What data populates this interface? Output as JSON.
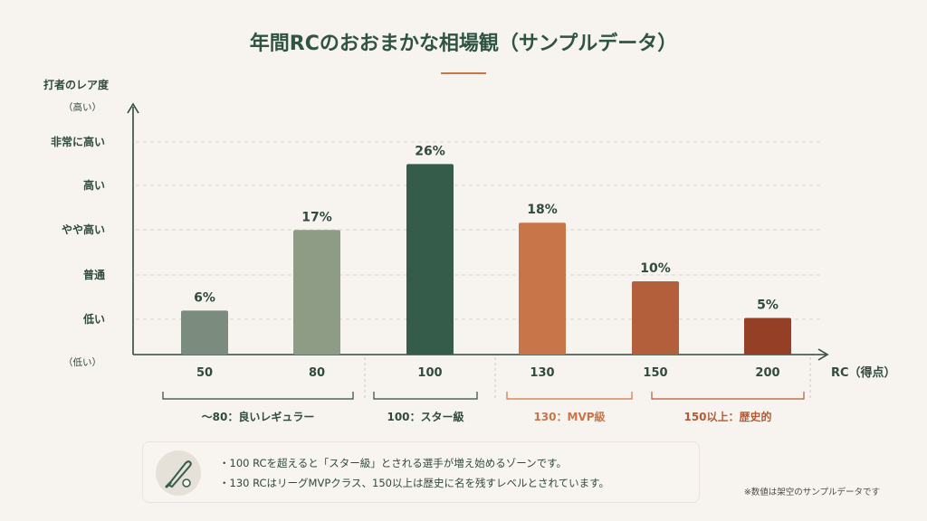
{
  "title": "年間RCのおおまかな相場観（サンプルデータ）",
  "y_axis": {
    "label": "打者のレア度",
    "top_hint": "（高い）",
    "bottom_hint": "（低い）",
    "levels": [
      "低い",
      "普通",
      "やや高い",
      "高い",
      "非常に高い"
    ]
  },
  "x_axis": {
    "label": "RC（得点）"
  },
  "zones": [
    {
      "label": "～80：良いレギュラー",
      "color": "#2f4a3e"
    },
    {
      "label": "100：スター級",
      "color": "#2f4a3e"
    },
    {
      "label": "130：MVP級",
      "color": "#c8754a"
    },
    {
      "label": "150以上：歴史的",
      "color": "#b35a34"
    }
  ],
  "note": {
    "icon": "baseball-bat-icon",
    "lines": [
      "・100 RCを超えると「スター級」とされる選手が増え始めるゾーンです。",
      "・130 RCはリーグMVPクラス、150以上は歴史に名を残すレベルとされています。"
    ]
  },
  "footnote": "※数値は架空のサンプルデータです",
  "chart_data": {
    "type": "bar",
    "categories": [
      "50",
      "80",
      "100",
      "130",
      "150",
      "200"
    ],
    "values": [
      6,
      17,
      26,
      18,
      10,
      5
    ],
    "value_labels": [
      "6%",
      "17%",
      "26%",
      "18%",
      "10%",
      "5%"
    ],
    "colors": [
      "#7b8b7d",
      "#8e9c85",
      "#355c4a",
      "#c8754a",
      "#b35f3b",
      "#953f26"
    ],
    "ylim": [
      0,
      30
    ],
    "grid": true
  }
}
